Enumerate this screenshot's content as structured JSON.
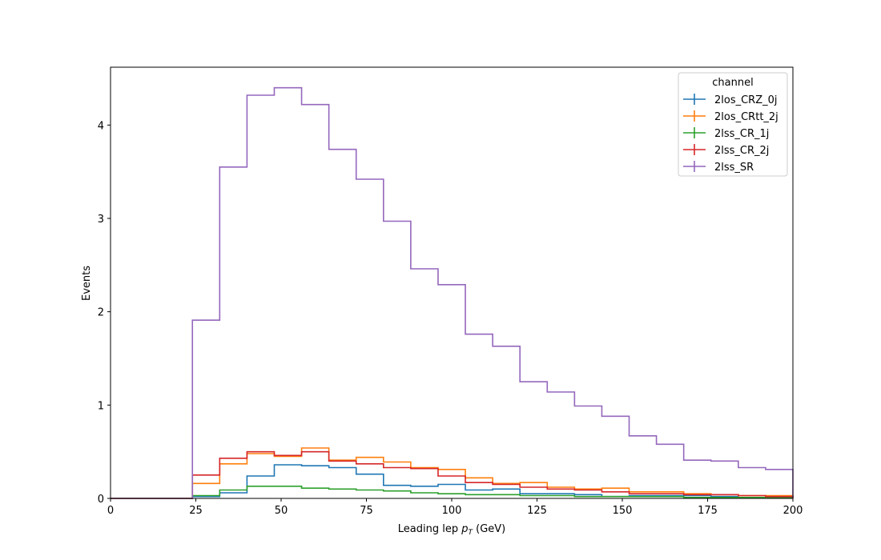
{
  "chart_data": {
    "type": "line",
    "step": true,
    "xlabel_prefix": "Leading lep ",
    "xlabel_var": "p",
    "xlabel_sub": "T",
    "xlabel_suffix": " (GeV)",
    "ylabel": "Events",
    "xlim": [
      0,
      200
    ],
    "ylim": [
      0,
      4.62
    ],
    "xticks": [
      "0",
      "25",
      "50",
      "75",
      "100",
      "125",
      "150",
      "175",
      "200"
    ],
    "xtick_values": [
      0,
      25,
      50,
      75,
      100,
      125,
      150,
      175,
      200
    ],
    "yticks": [
      "0",
      "1",
      "2",
      "3",
      "4"
    ],
    "ytick_values": [
      0,
      1,
      2,
      3,
      4
    ],
    "grid": false,
    "legend": {
      "title": "channel",
      "placement": "top-right"
    },
    "bin_edges": [
      0,
      8,
      16,
      24,
      32,
      40,
      48,
      56,
      64,
      72,
      80,
      88,
      96,
      104,
      112,
      120,
      128,
      136,
      144,
      152,
      160,
      168,
      176,
      184,
      192,
      200
    ],
    "series": [
      {
        "name": "2los_CRZ_0j",
        "color": "#1f77b4",
        "values": [
          0,
          0,
          0,
          0.02,
          0.06,
          0.24,
          0.36,
          0.35,
          0.33,
          0.26,
          0.14,
          0.13,
          0.15,
          0.09,
          0.1,
          0.05,
          0.05,
          0.04,
          0.02,
          0.03,
          0.03,
          0.03,
          0.02,
          0.01,
          0.01
        ]
      },
      {
        "name": "2los_CRtt_2j",
        "color": "#ff7f0e",
        "values": [
          0,
          0,
          0,
          0.16,
          0.37,
          0.48,
          0.45,
          0.54,
          0.41,
          0.44,
          0.39,
          0.33,
          0.31,
          0.22,
          0.16,
          0.17,
          0.12,
          0.1,
          0.11,
          0.07,
          0.07,
          0.05,
          0.04,
          0.03,
          0.03
        ]
      },
      {
        "name": "2lss_CR_1j",
        "color": "#2ca02c",
        "values": [
          0,
          0,
          0,
          0.03,
          0.09,
          0.13,
          0.13,
          0.11,
          0.1,
          0.09,
          0.08,
          0.06,
          0.05,
          0.04,
          0.04,
          0.03,
          0.03,
          0.02,
          0.02,
          0.02,
          0.02,
          0.01,
          0.01,
          0.01,
          0.01
        ]
      },
      {
        "name": "2lss_CR_2j",
        "color": "#d62728",
        "values": [
          0,
          0,
          0,
          0.25,
          0.43,
          0.5,
          0.46,
          0.5,
          0.4,
          0.37,
          0.33,
          0.32,
          0.24,
          0.17,
          0.15,
          0.12,
          0.1,
          0.09,
          0.07,
          0.05,
          0.05,
          0.04,
          0.04,
          0.03,
          0.02
        ]
      },
      {
        "name": "2lss_SR",
        "color": "#9467bd",
        "values": [
          0,
          0,
          0,
          1.91,
          3.55,
          4.32,
          4.4,
          4.22,
          3.74,
          3.42,
          2.97,
          2.46,
          2.29,
          1.76,
          1.63,
          1.25,
          1.14,
          0.99,
          0.88,
          0.67,
          0.58,
          0.41,
          0.4,
          0.33,
          0.31
        ]
      }
    ]
  }
}
